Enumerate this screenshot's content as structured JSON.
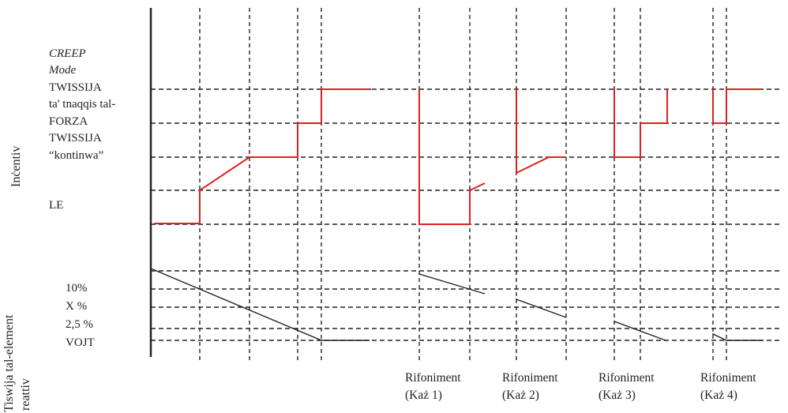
{
  "axis_titles": {
    "incentive": "Inċentiv",
    "depletion_line1": "Tiswija tal-element",
    "depletion_line2": "reattiv"
  },
  "incentive_levels": {
    "creep_1": "CREEP",
    "creep_2": "Mode",
    "twissija_tnaqqis_1": "TWISSIJA",
    "twissija_tnaqqis_2": "ta' tnaqqis tal-",
    "twissija_tnaqqis_3": "FORZA",
    "twissija_kontinwa_1": "TWISSIJA",
    "twissija_kontinwa_2": "“kontinwa”",
    "le": "LE"
  },
  "depletion_levels": {
    "ten_percent": "10%",
    "x_percent": "X %",
    "two_five_percent": "2,5 %",
    "empty": "VOJT"
  },
  "cases": [
    {
      "label": "Rifoniment",
      "sub": "(Każ 1)"
    },
    {
      "label": "Rifoniment",
      "sub": "(Każ 2)"
    },
    {
      "label": "Rifoniment",
      "sub": "(Każ 3)"
    },
    {
      "label": "Rifoniment",
      "sub": "(Każ 4)"
    }
  ],
  "colors": {
    "incentive_line": "#e02020",
    "depletion_line": "#222222",
    "grid": "#222222"
  }
}
